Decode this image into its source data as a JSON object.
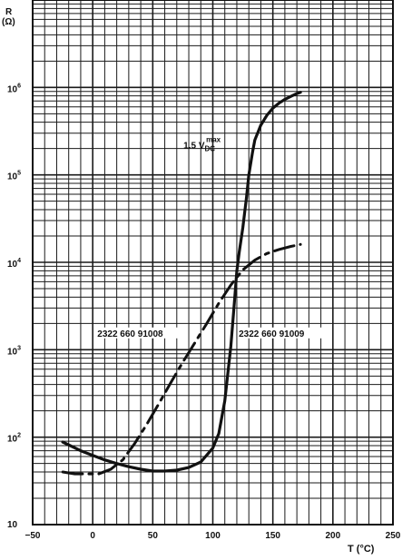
{
  "chart_data": {
    "type": "line",
    "title": "",
    "ylabel_line1": "R",
    "ylabel_line2": "(Ω)",
    "xlabel": "T (°C)",
    "x_ticks": [
      -50,
      0,
      50,
      100,
      150,
      200,
      250
    ],
    "x_tick_labels": [
      "−50",
      "0",
      "50",
      "100",
      "150",
      "200",
      "250"
    ],
    "y_ticks": [
      10,
      100,
      1000,
      10000,
      100000,
      1000000
    ],
    "y_tick_labels": [
      {
        "base": "10",
        "exp": ""
      },
      {
        "base": "10",
        "exp": "2"
      },
      {
        "base": "10",
        "exp": "3"
      },
      {
        "base": "10",
        "exp": "4"
      },
      {
        "base": "10",
        "exp": "5"
      },
      {
        "base": "10",
        "exp": "6"
      }
    ],
    "xlim": [
      -50,
      250
    ],
    "ylim": [
      10,
      10000000
    ],
    "y_scale": "log",
    "grid": true,
    "series": [
      {
        "name": "2322 660 91009",
        "style": "solid",
        "x": [
          -25,
          -10,
          0,
          10,
          20,
          30,
          40,
          50,
          60,
          70,
          80,
          90,
          100,
          105,
          110,
          115,
          118,
          120,
          122,
          125,
          128,
          130,
          133,
          135,
          140,
          145,
          150,
          155,
          160,
          165,
          170,
          173
        ],
        "y": [
          88,
          70,
          62,
          55,
          50,
          46,
          43,
          41,
          41,
          42,
          45,
          52,
          75,
          110,
          260,
          1100,
          3500,
          8000,
          13000,
          25000,
          55000,
          100000,
          180000,
          250000,
          370000,
          480000,
          580000,
          660000,
          730000,
          790000,
          850000,
          880000
        ]
      },
      {
        "name": "2322 660 91008",
        "style": "dashed",
        "x": [
          -25,
          -15,
          -5,
          5,
          15,
          25,
          35,
          45,
          55,
          65,
          75,
          85,
          95,
          105,
          115,
          125,
          135,
          145,
          155,
          165,
          173
        ],
        "y": [
          40,
          38,
          38,
          38,
          43,
          55,
          85,
          140,
          240,
          420,
          720,
          1200,
          2000,
          3400,
          5500,
          8200,
          10600,
          12600,
          14000,
          15200,
          16000
        ]
      }
    ],
    "annotations": [
      {
        "text_main": "1.5 V",
        "text_sub": "DC",
        "text_sup": "max",
        "x": 133,
        "y": 220000
      },
      {
        "text": "2322 660 91008",
        "x": 56,
        "y": 1450
      },
      {
        "text": "2322 660 91009",
        "x": 142,
        "y": 1450
      }
    ]
  }
}
